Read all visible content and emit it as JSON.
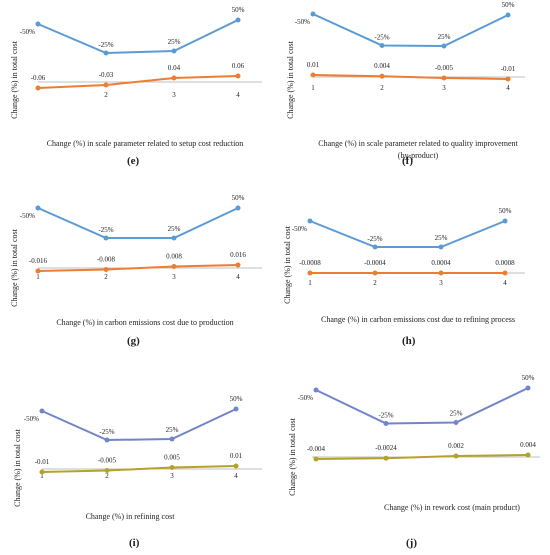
{
  "colors": {
    "series_a": "#5b9bd5",
    "series_b": "#ed7d31",
    "series_a_alt": "#7185c9",
    "series_b_alt": "#b5a22a",
    "axis": "#bfbfbf",
    "text": "#222222"
  },
  "chart_data": [
    {
      "panel": "(e)",
      "type": "line",
      "x": [
        1,
        2,
        3,
        4
      ],
      "xlabel": "Change (%) in scale parameter related to setup cost reduction",
      "ylabel": "Change (%) in total cost",
      "x_ticks": [
        "",
        "2",
        "3",
        "4"
      ],
      "series": [
        {
          "values": [
            -50,
            -25,
            25,
            50
          ],
          "labels": [
            "-50%",
            "-25%",
            "25%",
            "50%"
          ]
        },
        {
          "values": [
            -0.06,
            -0.03,
            0.04,
            0.06
          ],
          "labels": [
            "-0.06",
            "-0.03",
            "0.04",
            "0.06"
          ]
        }
      ]
    },
    {
      "panel": "(f)",
      "type": "line",
      "x": [
        1,
        2,
        3,
        4
      ],
      "xlabel": "Change (%) in scale parameter related to quality improvement (by-product)",
      "ylabel": "Change (%) in total cost",
      "x_ticks": [
        "1",
        "2",
        "3",
        "4"
      ],
      "series": [
        {
          "values": [
            -50,
            -25,
            25,
            50
          ],
          "labels": [
            "-50%",
            "-25%",
            "25%",
            "50%"
          ]
        },
        {
          "values": [
            0.01,
            0.004,
            -0.005,
            -0.01
          ],
          "labels": [
            "0.01",
            "0.004",
            "-0.005",
            "-0.01"
          ]
        }
      ]
    },
    {
      "panel": "(g)",
      "type": "line",
      "x": [
        1,
        2,
        3,
        4
      ],
      "xlabel": "Change (%) in carbon emissions cost due to production",
      "ylabel": "Change (%) in total cost",
      "x_ticks": [
        "1",
        "2",
        "3",
        "4"
      ],
      "series": [
        {
          "values": [
            -50,
            -25,
            25,
            50
          ],
          "labels": [
            "-50%",
            "-25%",
            "25%",
            "50%"
          ]
        },
        {
          "values": [
            -0.016,
            -0.008,
            0.008,
            0.016
          ],
          "labels": [
            "-0.016",
            "-0.008",
            "0.008",
            "0.016"
          ]
        }
      ]
    },
    {
      "panel": "(h)",
      "type": "line",
      "x": [
        1,
        2,
        3,
        4
      ],
      "xlabel": "Change (%) in carbon emissions cost due to refining process",
      "ylabel": "Change (%) in total cost",
      "x_ticks": [
        "1",
        "2",
        "3",
        "4"
      ],
      "series": [
        {
          "values": [
            -50,
            -25,
            25,
            50
          ],
          "labels": [
            "-50%",
            "-25%",
            "25%",
            "50%"
          ]
        },
        {
          "values": [
            -0.0008,
            -0.0004,
            0.0004,
            0.0008
          ],
          "labels": [
            "-0.0008",
            "-0.0004",
            "0.0004",
            "0.0008"
          ]
        }
      ]
    },
    {
      "panel": "(i)",
      "type": "line",
      "x": [
        1,
        2,
        3,
        4
      ],
      "xlabel": "Change (%) in refining cost",
      "ylabel": "Change (%) in total cost",
      "x_ticks": [
        "1",
        "2",
        "3",
        "4"
      ],
      "series": [
        {
          "values": [
            -50,
            -25,
            25,
            50
          ],
          "labels": [
            "-50%",
            "-25%",
            "25%",
            "50%"
          ]
        },
        {
          "values": [
            -0.01,
            -0.005,
            0.005,
            0.01
          ],
          "labels": [
            "-0.01",
            "-0.005",
            "0.005",
            "0.01"
          ]
        }
      ]
    },
    {
      "panel": "(j)",
      "type": "line",
      "x": [
        1,
        2,
        3,
        4
      ],
      "xlabel": "Change (%) in rework cost (main product)",
      "ylabel": "Change (%) in total cost",
      "x_ticks": [
        "",
        "",
        "",
        ""
      ],
      "series": [
        {
          "values": [
            -50,
            -25,
            25,
            50
          ],
          "labels": [
            "-50%",
            "-25%",
            "25%",
            "50%"
          ]
        },
        {
          "values": [
            -0.004,
            -0.0024,
            0.002,
            0.004
          ],
          "labels": [
            "-0.004",
            "-0.0024",
            "0.002",
            "0.004"
          ]
        }
      ]
    }
  ]
}
